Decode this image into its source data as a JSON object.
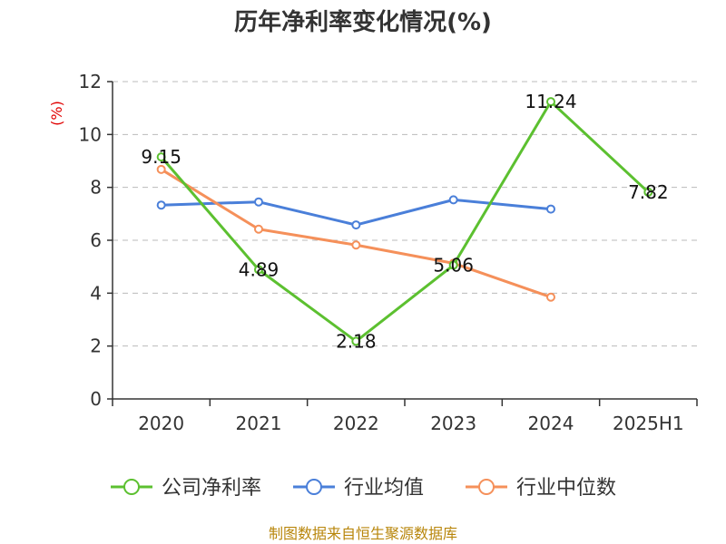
{
  "chart_data": {
    "type": "line",
    "title": "历年净利率变化情况(%)",
    "ylabel": "(%)",
    "categories": [
      "2020",
      "2021",
      "2022",
      "2023",
      "2024",
      "2025H1"
    ],
    "ylim": [
      0,
      12
    ],
    "yticks": [
      "0",
      "2",
      "4",
      "6",
      "8",
      "10",
      "12"
    ],
    "grid": true,
    "legend_position": "bottom",
    "series": [
      {
        "name": "公司净利率",
        "color": "#5cc030",
        "values": [
          9.15,
          4.89,
          2.18,
          5.06,
          11.24,
          7.82
        ],
        "labels": [
          "9.15",
          "4.89",
          "2.18",
          "5.06",
          "11.24",
          "7.82"
        ]
      },
      {
        "name": "行业均值",
        "color": "#4a7fd9",
        "values": [
          7.33,
          7.45,
          6.58,
          7.53,
          7.18,
          null
        ]
      },
      {
        "name": "行业中位数",
        "color": "#f5905a",
        "values": [
          8.68,
          6.42,
          5.82,
          5.13,
          3.85,
          null
        ]
      }
    ]
  },
  "source_text": "制图数据来自恒生聚源数据库"
}
